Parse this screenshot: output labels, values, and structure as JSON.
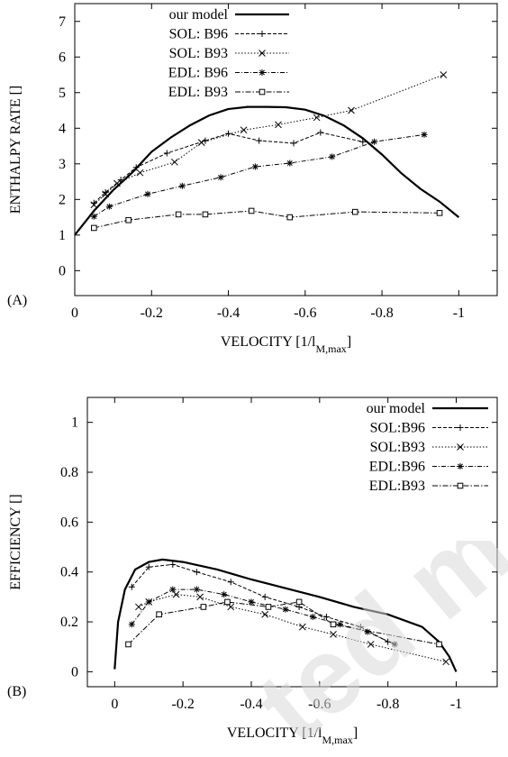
{
  "chart_data": [
    {
      "panel": "(A)",
      "type": "line",
      "xlabel": "VELOCITY [1/l",
      "xlabel_sub": "M,max",
      "xlabel_close": "]",
      "ylabel": "ENTHALPY RATE []",
      "xlim": [
        0,
        -1.1
      ],
      "ylim": [
        -0.7,
        7.5
      ],
      "xticks": [
        0,
        -0.2,
        -0.4,
        -0.6,
        -0.8,
        -1
      ],
      "xtick_labels": [
        "0",
        "-0.2",
        "-0.4",
        "-0.6",
        "-0.8",
        "-1"
      ],
      "yticks": [
        0,
        1,
        2,
        3,
        4,
        5,
        6,
        7
      ],
      "ytick_labels": [
        "0",
        "1",
        "2",
        "3",
        "4",
        "5",
        "6",
        "7"
      ],
      "legend_position": "top-left",
      "series": [
        {
          "name": "our model",
          "style": "solid",
          "marker": "none",
          "x": [
            0,
            -0.05,
            -0.1,
            -0.15,
            -0.2,
            -0.25,
            -0.3,
            -0.35,
            -0.4,
            -0.45,
            -0.5,
            -0.55,
            -0.6,
            -0.65,
            -0.7,
            -0.75,
            -0.8,
            -0.85,
            -0.9,
            -0.95,
            -1.0
          ],
          "y": [
            1.0,
            1.68,
            2.26,
            2.76,
            3.34,
            3.74,
            4.08,
            4.36,
            4.54,
            4.6,
            4.6,
            4.59,
            4.52,
            4.35,
            4.08,
            3.72,
            3.26,
            2.74,
            2.3,
            1.94,
            1.5
          ]
        },
        {
          "name": "SOL: B96",
          "style": "dashed",
          "marker": "plus",
          "x": [
            -0.05,
            -0.08,
            -0.12,
            -0.16,
            -0.24,
            -0.34,
            -0.4,
            -0.48,
            -0.57,
            -0.64,
            -0.75
          ],
          "y": [
            1.9,
            2.2,
            2.55,
            2.9,
            3.3,
            3.65,
            3.85,
            3.65,
            3.58,
            3.88,
            3.62
          ]
        },
        {
          "name": "SOL: B93",
          "style": "dotted",
          "marker": "x",
          "x": [
            -0.05,
            -0.08,
            -0.11,
            -0.17,
            -0.26,
            -0.33,
            -0.44,
            -0.53,
            -0.63,
            -0.72,
            -0.96
          ],
          "y": [
            1.85,
            2.15,
            2.45,
            2.75,
            3.05,
            3.6,
            3.95,
            4.1,
            4.3,
            4.5,
            5.5
          ]
        },
        {
          "name": "EDL: B96",
          "style": "dashed-dotted",
          "marker": "asterisk",
          "x": [
            -0.05,
            -0.09,
            -0.19,
            -0.28,
            -0.38,
            -0.47,
            -0.56,
            -0.67,
            -0.78,
            -0.91
          ],
          "y": [
            1.52,
            1.8,
            2.15,
            2.38,
            2.62,
            2.92,
            3.02,
            3.2,
            3.62,
            3.82
          ]
        },
        {
          "name": "EDL: B93",
          "style": "dash-dot",
          "marker": "square",
          "x": [
            -0.05,
            -0.14,
            -0.27,
            -0.34,
            -0.46,
            -0.56,
            -0.73,
            -0.95
          ],
          "y": [
            1.2,
            1.42,
            1.58,
            1.58,
            1.68,
            1.5,
            1.65,
            1.62
          ]
        }
      ]
    },
    {
      "panel": "(B)",
      "type": "line",
      "xlabel": "VELOCITY [1/l",
      "xlabel_sub": "M,max",
      "xlabel_close": "]",
      "ylabel": "EFFICIENCY []",
      "xlim": [
        0.08,
        -1.12
      ],
      "ylim": [
        -0.06,
        1.1
      ],
      "xticks": [
        0,
        -0.2,
        -0.4,
        -0.6,
        -0.8,
        -1
      ],
      "xtick_labels": [
        "0",
        "-0.2",
        "-0.4",
        "-0.6",
        "-0.8",
        "-1"
      ],
      "yticks": [
        0,
        0.2,
        0.4,
        0.6,
        0.8,
        1
      ],
      "ytick_labels": [
        "0",
        "0.2",
        "0.4",
        "0.6",
        "0.8",
        "1"
      ],
      "legend_position": "top-right",
      "series": [
        {
          "name": "our model",
          "style": "solid",
          "marker": "none",
          "x": [
            0,
            -0.01,
            -0.03,
            -0.06,
            -0.1,
            -0.14,
            -0.2,
            -0.3,
            -0.4,
            -0.5,
            -0.6,
            -0.7,
            -0.8,
            -0.9,
            -0.95,
            -0.98,
            -1.0
          ],
          "y": [
            0.01,
            0.2,
            0.33,
            0.41,
            0.44,
            0.45,
            0.44,
            0.41,
            0.37,
            0.335,
            0.3,
            0.26,
            0.23,
            0.18,
            0.12,
            0.06,
            0.0
          ]
        },
        {
          "name": "SOL:B96",
          "style": "dashed",
          "marker": "plus",
          "x": [
            -0.05,
            -0.1,
            -0.17,
            -0.24,
            -0.34,
            -0.44,
            -0.54,
            -0.62,
            -0.72,
            -0.8
          ],
          "y": [
            0.34,
            0.42,
            0.43,
            0.4,
            0.36,
            0.3,
            0.26,
            0.22,
            0.18,
            0.12
          ]
        },
        {
          "name": "SOL:B93",
          "style": "dotted",
          "marker": "x",
          "x": [
            -0.07,
            -0.1,
            -0.18,
            -0.25,
            -0.34,
            -0.44,
            -0.55,
            -0.64,
            -0.75,
            -0.97
          ],
          "y": [
            0.26,
            0.28,
            0.31,
            0.3,
            0.26,
            0.23,
            0.18,
            0.15,
            0.11,
            0.04
          ]
        },
        {
          "name": "EDL:B96",
          "style": "dashed-dotted",
          "marker": "asterisk",
          "x": [
            -0.05,
            -0.1,
            -0.17,
            -0.24,
            -0.32,
            -0.4,
            -0.5,
            -0.58,
            -0.66,
            -0.74,
            -0.82
          ],
          "y": [
            0.19,
            0.28,
            0.33,
            0.33,
            0.31,
            0.28,
            0.25,
            0.22,
            0.19,
            0.16,
            0.11
          ]
        },
        {
          "name": "EDL:B93",
          "style": "dash-dot",
          "marker": "square",
          "x": [
            -0.04,
            -0.13,
            -0.26,
            -0.33,
            -0.45,
            -0.54,
            -0.64,
            -0.95
          ],
          "y": [
            0.11,
            0.23,
            0.26,
            0.28,
            0.26,
            0.28,
            0.19,
            0.11
          ]
        }
      ]
    }
  ]
}
